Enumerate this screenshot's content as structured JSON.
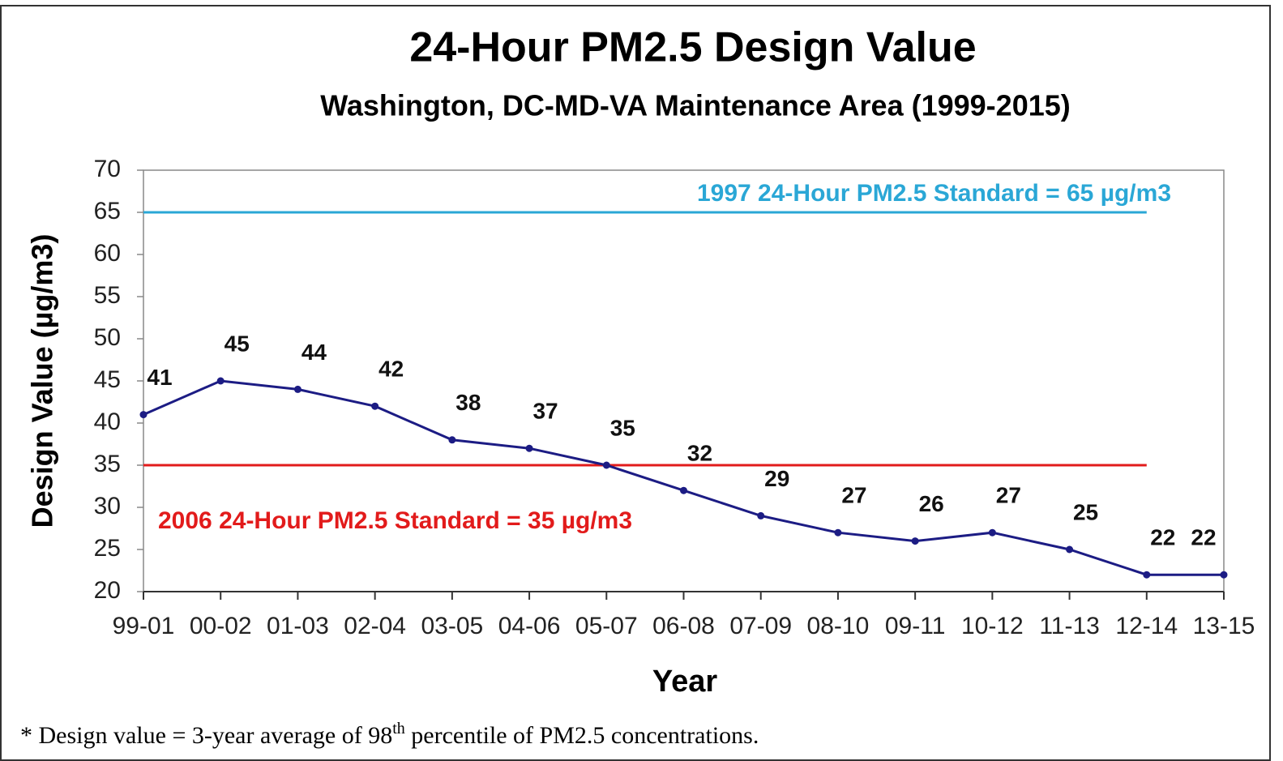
{
  "chart_data": {
    "type": "line",
    "title": "24-Hour PM2.5 Design Value",
    "subtitle": "Washington, DC-MD-VA Maintenance Area (1999-2015)",
    "x_label": "Year",
    "y_label": "Design Value (µg/m3)",
    "categories": [
      "99-01",
      "00-02",
      "01-03",
      "02-04",
      "03-05",
      "04-06",
      "05-07",
      "06-08",
      "07-09",
      "08-10",
      "09-11",
      "10-12",
      "11-13",
      "12-14",
      "13-15"
    ],
    "series": [
      {
        "name": "Design Value",
        "color": "#1c1c84",
        "values": [
          41,
          45,
          44,
          42,
          38,
          37,
          35,
          32,
          29,
          27,
          26,
          27,
          25,
          22,
          22
        ]
      }
    ],
    "ylim": [
      20,
      70
    ],
    "yticks": [
      20,
      25,
      30,
      35,
      40,
      45,
      50,
      55,
      60,
      65,
      70
    ],
    "reference_lines": [
      {
        "value": 65,
        "label": "1997 24-Hour PM2.5 Standard = 65 µg/m3",
        "color": "#2aa7d6"
      },
      {
        "value": 35,
        "label": "2006 24-Hour PM2.5 Standard = 35 µg/m3",
        "color": "#e21b1b"
      }
    ],
    "footnote": {
      "before": "* Design value = 3-year average of  98",
      "sup": "th",
      "after": " percentile of PM2.5 concentrations."
    }
  }
}
